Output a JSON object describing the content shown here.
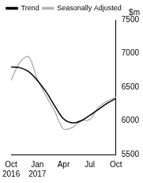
{
  "chart_data": {
    "type": "line",
    "y_label": "$m",
    "categories": [
      "Oct 2016",
      null,
      null,
      "Jan 2017",
      null,
      null,
      "Apr",
      null,
      null,
      "Jul",
      null,
      null,
      "Oct"
    ],
    "series": [
      {
        "name": "Trend",
        "color": "#000000",
        "values": [
          6800,
          6790,
          6730,
          6600,
          6430,
          6220,
          6030,
          5970,
          6000,
          6080,
          6170,
          6260,
          6330
        ]
      },
      {
        "name": "Seasonally Adjusted",
        "color": "#b4b4b4",
        "values": [
          6600,
          6870,
          6950,
          6620,
          6370,
          6140,
          5880,
          5900,
          6000,
          6020,
          6200,
          6290,
          6350
        ]
      }
    ],
    "ylim": [
      5500,
      7500
    ],
    "yticks": [
      5500,
      6000,
      6500,
      7000,
      7500
    ],
    "grid": false,
    "legend": "top-left"
  }
}
